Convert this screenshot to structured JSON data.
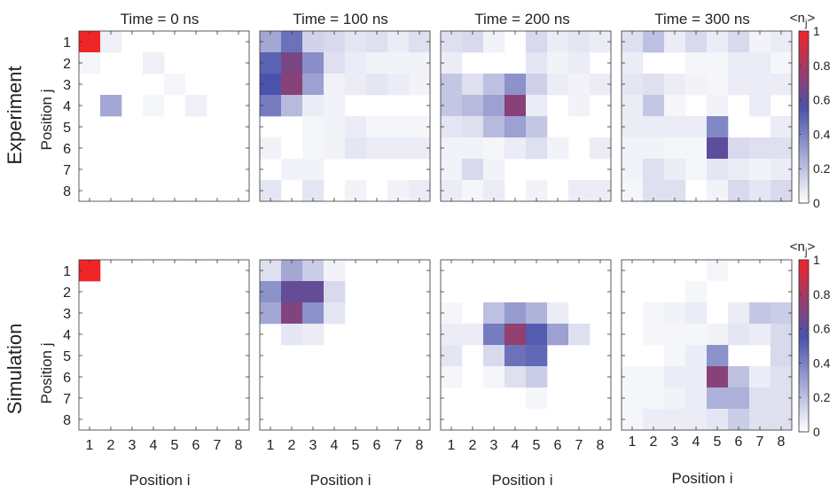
{
  "chart_data": {
    "type": "heatmap",
    "row_labels": [
      "Experiment",
      "Simulation"
    ],
    "col_titles": [
      "Time = 0 ns",
      "Time = 100 ns",
      "Time = 200 ns",
      "Time = 300 ns"
    ],
    "xlabel": "Position i",
    "ylabel": "Position j",
    "tick_labels": [
      "1",
      "2",
      "3",
      "4",
      "5",
      "6",
      "7",
      "8"
    ],
    "colorbar": {
      "label": "<n",
      "label_sub": "j",
      "label_end": ">",
      "ticks": [
        "0",
        "0.2",
        "0.4",
        "0.6",
        "0.8",
        "1"
      ],
      "range": [
        0,
        1
      ]
    },
    "colormap": [
      "#ffffff",
      "#4a53ab",
      "#ef2527"
    ],
    "panels": [
      {
        "name": "experiment-t0",
        "values": [
          [
            1.0,
            0.05,
            0,
            0,
            0,
            0,
            0,
            0
          ],
          [
            0.03,
            0,
            0,
            0.05,
            0,
            0,
            0,
            0
          ],
          [
            0,
            0,
            0,
            0,
            0.03,
            0,
            0,
            0
          ],
          [
            0,
            0.28,
            0,
            0.03,
            0,
            0.05,
            0,
            0
          ],
          [
            0,
            0,
            0,
            0,
            0,
            0,
            0,
            0
          ],
          [
            0,
            0,
            0,
            0,
            0,
            0,
            0,
            0
          ],
          [
            0,
            0,
            0,
            0,
            0,
            0,
            0,
            0
          ],
          [
            0,
            0,
            0,
            0,
            0,
            0,
            0,
            0
          ]
        ]
      },
      {
        "name": "experiment-t100",
        "values": [
          [
            0.28,
            0.45,
            0.14,
            0.12,
            0.08,
            0.1,
            0.06,
            0.1
          ],
          [
            0.5,
            0.68,
            0.36,
            0.1,
            0.06,
            0.04,
            0.04,
            0.04
          ],
          [
            0.55,
            0.72,
            0.3,
            0.04,
            0.06,
            0.08,
            0.06,
            0.04
          ],
          [
            0.42,
            0.22,
            0.06,
            0.04,
            0,
            0,
            0,
            0
          ],
          [
            0,
            0,
            0.03,
            0.04,
            0.06,
            0.03,
            0.03,
            0.03
          ],
          [
            0.04,
            0,
            0.03,
            0.04,
            0.08,
            0.06,
            0.06,
            0.06
          ],
          [
            0,
            0.04,
            0.04,
            0,
            0,
            0,
            0,
            0
          ],
          [
            0.08,
            0,
            0.08,
            0,
            0.04,
            0,
            0.04,
            0.06
          ]
        ]
      },
      {
        "name": "experiment-t200",
        "values": [
          [
            0.1,
            0.12,
            0.04,
            0,
            0.12,
            0.06,
            0.08,
            0.06
          ],
          [
            0.06,
            0,
            0,
            0,
            0.08,
            0.04,
            0.06,
            0
          ],
          [
            0.18,
            0.1,
            0.2,
            0.35,
            0.15,
            0.06,
            0.04,
            0.06
          ],
          [
            0.18,
            0.22,
            0.3,
            0.72,
            0.06,
            0,
            0.04,
            0
          ],
          [
            0.08,
            0.1,
            0.22,
            0.3,
            0.18,
            0,
            0,
            0
          ],
          [
            0.04,
            0.04,
            0.03,
            0.06,
            0.1,
            0.04,
            0,
            0.06
          ],
          [
            0.04,
            0.12,
            0.04,
            0,
            0,
            0,
            0,
            0
          ],
          [
            0.06,
            0.03,
            0.06,
            0,
            0.04,
            0,
            0.06,
            0.06
          ]
        ]
      },
      {
        "name": "experiment-t300",
        "values": [
          [
            0.1,
            0.2,
            0.06,
            0.12,
            0.06,
            0.12,
            0.04,
            0.06
          ],
          [
            0.06,
            0,
            0,
            0.03,
            0.03,
            0.06,
            0.06,
            0.03
          ],
          [
            0.08,
            0.1,
            0.06,
            0.04,
            0.03,
            0.06,
            0.06,
            0.06
          ],
          [
            0.06,
            0.18,
            0.03,
            0,
            0.04,
            0,
            0.06,
            0
          ],
          [
            0.06,
            0.06,
            0.06,
            0.06,
            0.38,
            0,
            0,
            0.06
          ],
          [
            0.04,
            0.04,
            0.03,
            0.03,
            0.6,
            0.12,
            0.1,
            0.1
          ],
          [
            0.04,
            0.1,
            0.06,
            0.03,
            0.08,
            0.06,
            0.04,
            0.06
          ],
          [
            0.03,
            0.1,
            0.1,
            0,
            0.04,
            0.12,
            0.08,
            0.12
          ]
        ]
      },
      {
        "name": "simulation-t0",
        "values": [
          [
            1.0,
            0,
            0,
            0,
            0,
            0,
            0,
            0
          ],
          [
            0,
            0,
            0,
            0,
            0,
            0,
            0,
            0
          ],
          [
            0,
            0,
            0,
            0,
            0,
            0,
            0,
            0
          ],
          [
            0,
            0,
            0,
            0,
            0,
            0,
            0,
            0
          ],
          [
            0,
            0,
            0,
            0,
            0,
            0,
            0,
            0
          ],
          [
            0,
            0,
            0,
            0,
            0,
            0,
            0,
            0
          ],
          [
            0,
            0,
            0,
            0,
            0,
            0,
            0,
            0
          ],
          [
            0,
            0,
            0,
            0,
            0,
            0,
            0,
            0
          ]
        ]
      },
      {
        "name": "simulation-t100",
        "values": [
          [
            0.1,
            0.28,
            0.16,
            0.04,
            0,
            0,
            0,
            0
          ],
          [
            0.35,
            0.62,
            0.62,
            0.12,
            0,
            0,
            0,
            0
          ],
          [
            0.28,
            0.7,
            0.35,
            0.08,
            0,
            0,
            0,
            0
          ],
          [
            0,
            0.08,
            0.06,
            0,
            0,
            0,
            0,
            0
          ],
          [
            0,
            0,
            0,
            0,
            0,
            0,
            0,
            0
          ],
          [
            0,
            0,
            0,
            0,
            0,
            0,
            0,
            0
          ],
          [
            0,
            0,
            0,
            0,
            0,
            0,
            0,
            0
          ],
          [
            0,
            0,
            0,
            0,
            0,
            0,
            0,
            0
          ]
        ]
      },
      {
        "name": "simulation-t200",
        "values": [
          [
            0,
            0,
            0,
            0,
            0,
            0,
            0,
            0
          ],
          [
            0,
            0,
            0,
            0,
            0,
            0,
            0,
            0
          ],
          [
            0.03,
            0,
            0.2,
            0.32,
            0.24,
            0.06,
            0,
            0
          ],
          [
            0.06,
            0.06,
            0.42,
            0.75,
            0.52,
            0.3,
            0.1,
            0
          ],
          [
            0.08,
            0,
            0.12,
            0.45,
            0.48,
            0,
            0,
            0
          ],
          [
            0.03,
            0,
            0.03,
            0.1,
            0.16,
            0,
            0,
            0
          ],
          [
            0,
            0,
            0,
            0,
            0.03,
            0,
            0,
            0
          ],
          [
            0,
            0,
            0,
            0,
            0,
            0,
            0,
            0
          ]
        ]
      },
      {
        "name": "simulation-t300",
        "values": [
          [
            0,
            0,
            0,
            0,
            0.03,
            0,
            0,
            0
          ],
          [
            0,
            0,
            0,
            0.03,
            0,
            0,
            0,
            0
          ],
          [
            0,
            0.03,
            0.04,
            0.06,
            0,
            0.06,
            0.18,
            0.16
          ],
          [
            0,
            0.03,
            0.03,
            0.03,
            0.04,
            0.08,
            0.06,
            0.12
          ],
          [
            0,
            0,
            0.03,
            0.06,
            0.35,
            0,
            0,
            0.12
          ],
          [
            0.03,
            0.03,
            0.06,
            0.06,
            0.72,
            0.2,
            0.06,
            0.1
          ],
          [
            0.03,
            0.03,
            0.04,
            0.06,
            0.25,
            0.25,
            0.1,
            0.1
          ],
          [
            0.03,
            0.06,
            0.06,
            0.06,
            0.08,
            0.16,
            0.1,
            0.1
          ]
        ]
      }
    ]
  }
}
